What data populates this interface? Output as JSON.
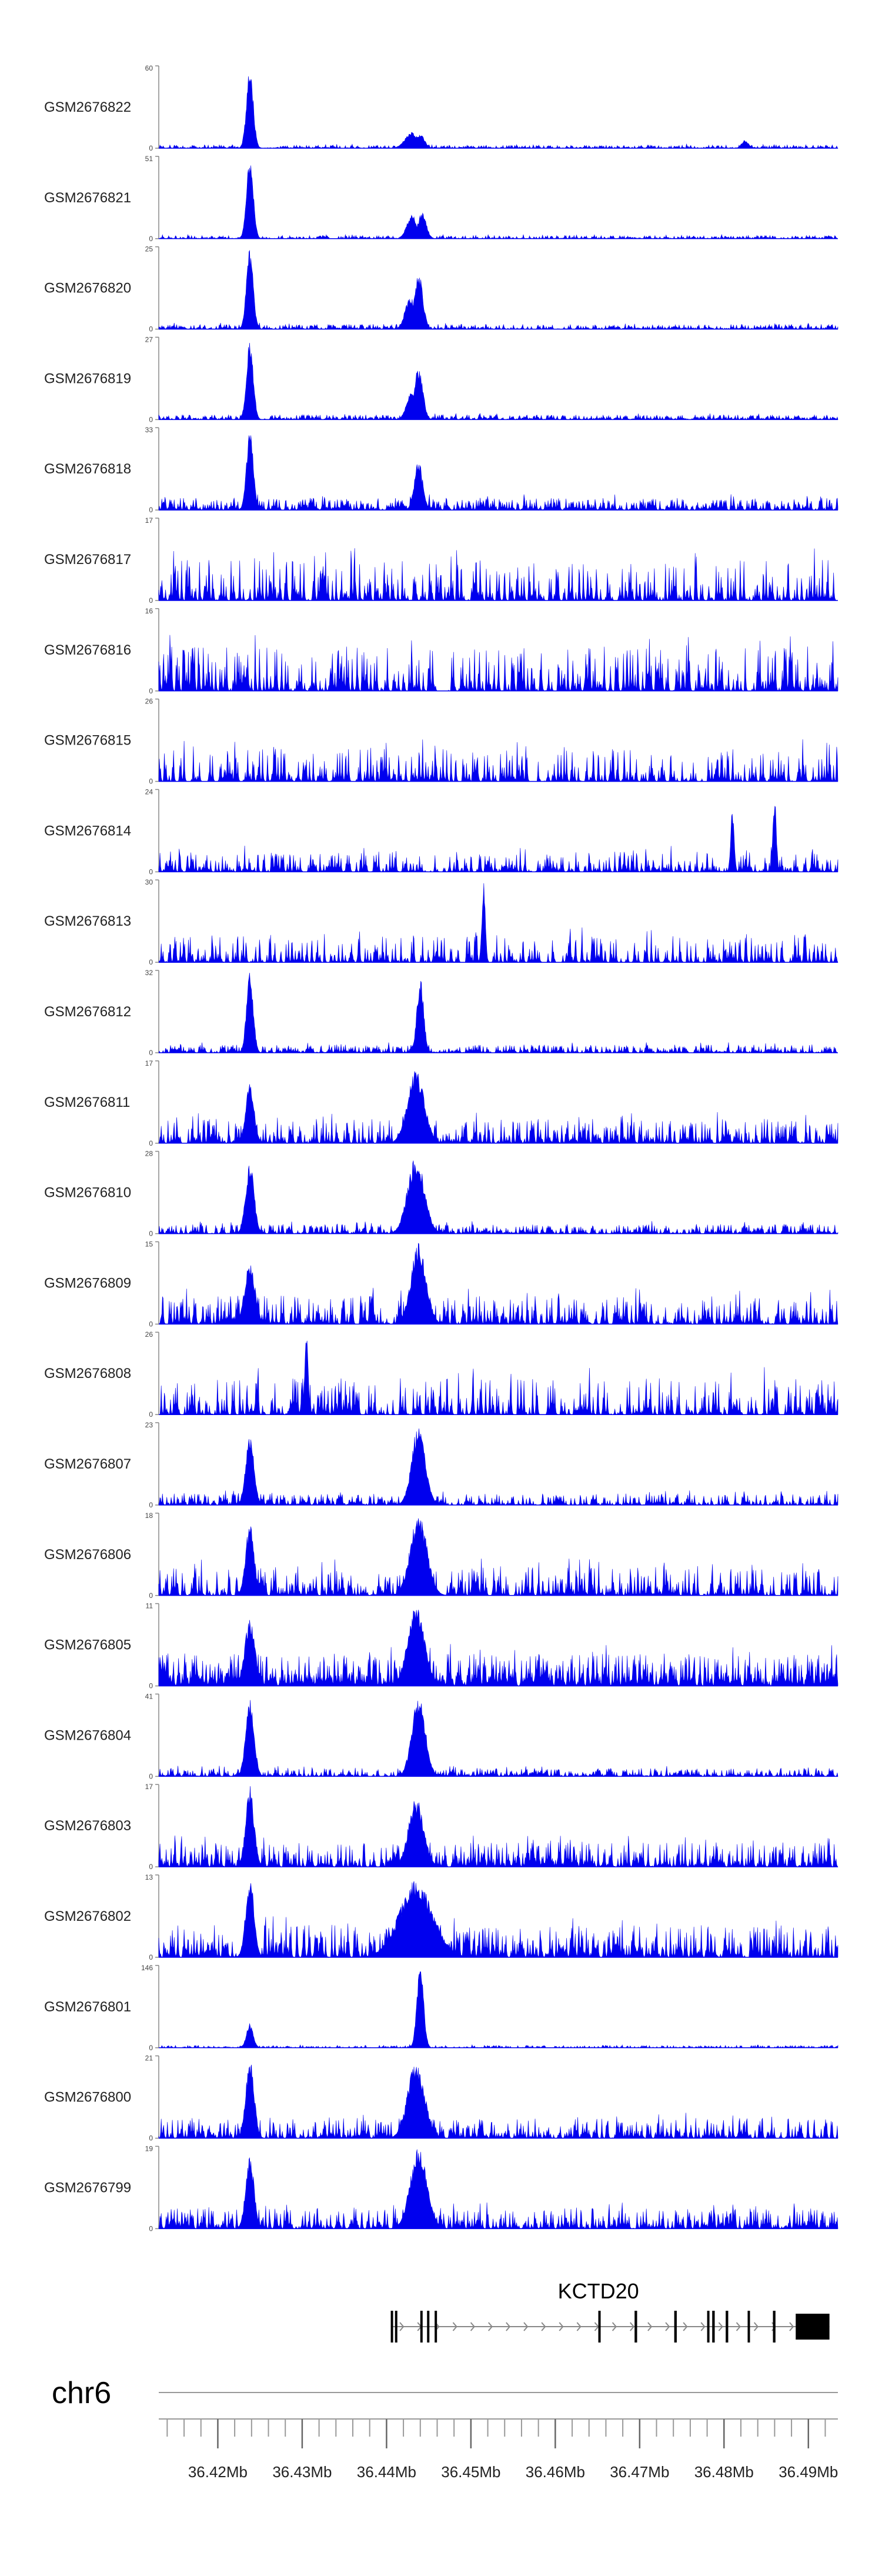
{
  "chart_data": {
    "type": "area",
    "title": "",
    "chromosome": "chr6",
    "x_unit": "Mb",
    "xlim": [
      36.413,
      36.4935
    ],
    "x_ticks": [
      36.42,
      36.43,
      36.44,
      36.45,
      36.46,
      36.47,
      36.48,
      36.49
    ],
    "x_tick_labels": [
      "36.42Mb",
      "36.43Mb",
      "36.44Mb",
      "36.45Mb",
      "36.46Mb",
      "36.47Mb",
      "36.48Mb",
      "36.49Mb"
    ],
    "minor_tick_step": 0.002,
    "tracks": [
      {
        "name": "GSM2676822",
        "ymax": 60,
        "ymin": 0,
        "noise": 0.04,
        "sparse": 0.3,
        "peaks": [
          [
            36.4238,
            1.0,
            0.0004
          ],
          [
            36.443,
            0.2,
            0.0008
          ],
          [
            36.444,
            0.18,
            0.0005
          ],
          [
            36.4825,
            0.1,
            0.0004
          ]
        ]
      },
      {
        "name": "GSM2676821",
        "ymax": 51,
        "ymin": 0,
        "noise": 0.04,
        "sparse": 0.3,
        "peaks": [
          [
            36.4238,
            1.0,
            0.0004
          ],
          [
            36.443,
            0.3,
            0.0006
          ],
          [
            36.4442,
            0.32,
            0.0005
          ]
        ]
      },
      {
        "name": "GSM2676820",
        "ymax": 25,
        "ymin": 0,
        "noise": 0.06,
        "sparse": 0.25,
        "peaks": [
          [
            36.4238,
            1.0,
            0.0004
          ],
          [
            36.4428,
            0.4,
            0.0006
          ],
          [
            36.4438,
            0.7,
            0.0005
          ]
        ]
      },
      {
        "name": "GSM2676819",
        "ymax": 27,
        "ymin": 0,
        "noise": 0.06,
        "sparse": 0.25,
        "peaks": [
          [
            36.4238,
            1.0,
            0.0004
          ],
          [
            36.443,
            0.35,
            0.0006
          ],
          [
            36.4438,
            0.65,
            0.0005
          ]
        ]
      },
      {
        "name": "GSM2676818",
        "ymax": 33,
        "ymin": 0,
        "noise": 0.15,
        "sparse": 0.3,
        "peaks": [
          [
            36.4238,
            1.0,
            0.0004
          ],
          [
            36.4438,
            0.6,
            0.0005
          ]
        ]
      },
      {
        "name": "GSM2676817",
        "ymax": 17,
        "ymin": 0,
        "noise": 0.5,
        "sparse": 0.55,
        "peaks": []
      },
      {
        "name": "GSM2676816",
        "ymax": 16,
        "ymin": 0,
        "noise": 0.55,
        "sparse": 0.55,
        "peaks": []
      },
      {
        "name": "GSM2676815",
        "ymax": 26,
        "ymin": 0,
        "noise": 0.4,
        "sparse": 0.55,
        "peaks": []
      },
      {
        "name": "GSM2676814",
        "ymax": 24,
        "ymin": 0,
        "noise": 0.25,
        "sparse": 0.5,
        "peaks": [
          [
            36.481,
            0.8,
            0.0002
          ],
          [
            36.486,
            0.95,
            0.0002
          ]
        ]
      },
      {
        "name": "GSM2676813",
        "ymax": 30,
        "ymin": 0,
        "noise": 0.35,
        "sparse": 0.55,
        "peaks": [
          [
            36.4515,
            1.0,
            0.0002
          ]
        ]
      },
      {
        "name": "GSM2676812",
        "ymax": 32,
        "ymin": 0,
        "noise": 0.1,
        "sparse": 0.35,
        "peaks": [
          [
            36.4238,
            1.0,
            0.0004
          ],
          [
            36.444,
            0.95,
            0.0004
          ]
        ]
      },
      {
        "name": "GSM2676811",
        "ymax": 17,
        "ymin": 0,
        "noise": 0.3,
        "sparse": 0.4,
        "peaks": [
          [
            36.4238,
            0.75,
            0.0005
          ],
          [
            36.4435,
            0.9,
            0.001
          ]
        ]
      },
      {
        "name": "GSM2676810",
        "ymax": 28,
        "ymin": 0,
        "noise": 0.12,
        "sparse": 0.35,
        "peaks": [
          [
            36.4238,
            0.9,
            0.0005
          ],
          [
            36.4435,
            0.95,
            0.001
          ]
        ]
      },
      {
        "name": "GSM2676809",
        "ymax": 15,
        "ymin": 0,
        "noise": 0.35,
        "sparse": 0.4,
        "peaks": [
          [
            36.4238,
            0.8,
            0.0006
          ],
          [
            36.4438,
            1.0,
            0.0009
          ]
        ]
      },
      {
        "name": "GSM2676808",
        "ymax": 26,
        "ymin": 0,
        "noise": 0.45,
        "sparse": 0.55,
        "peaks": [
          [
            36.4305,
            1.0,
            0.0002
          ]
        ]
      },
      {
        "name": "GSM2676807",
        "ymax": 23,
        "ymin": 0,
        "noise": 0.14,
        "sparse": 0.35,
        "peaks": [
          [
            36.4238,
            0.85,
            0.0005
          ],
          [
            36.4438,
            1.0,
            0.0008
          ]
        ]
      },
      {
        "name": "GSM2676806",
        "ymax": 18,
        "ymin": 0,
        "noise": 0.35,
        "sparse": 0.45,
        "peaks": [
          [
            36.4238,
            0.9,
            0.0005
          ],
          [
            36.4438,
            1.0,
            0.001
          ]
        ]
      },
      {
        "name": "GSM2676805",
        "ymax": 11,
        "ymin": 0,
        "noise": 0.4,
        "sparse": 0.15,
        "peaks": [
          [
            36.4238,
            0.85,
            0.0006
          ],
          [
            36.4435,
            1.0,
            0.001
          ]
        ]
      },
      {
        "name": "GSM2676804",
        "ymax": 41,
        "ymin": 0,
        "noise": 0.1,
        "sparse": 0.35,
        "peaks": [
          [
            36.4238,
            0.95,
            0.0005
          ],
          [
            36.4438,
            1.0,
            0.0008
          ]
        ]
      },
      {
        "name": "GSM2676803",
        "ymax": 17,
        "ymin": 0,
        "noise": 0.3,
        "sparse": 0.35,
        "peaks": [
          [
            36.4238,
            1.0,
            0.0005
          ],
          [
            36.4435,
            0.85,
            0.0009
          ]
        ]
      },
      {
        "name": "GSM2676802",
        "ymax": 13,
        "ymin": 0,
        "noise": 0.4,
        "sparse": 0.4,
        "peaks": [
          [
            36.4238,
            1.0,
            0.0005
          ],
          [
            36.4435,
            0.95,
            0.002
          ]
        ]
      },
      {
        "name": "GSM2676801",
        "ymax": 146,
        "ymin": 0,
        "noise": 0.03,
        "sparse": 0.35,
        "peaks": [
          [
            36.4238,
            0.3,
            0.0004
          ],
          [
            36.444,
            1.0,
            0.0004
          ]
        ]
      },
      {
        "name": "GSM2676800",
        "ymax": 21,
        "ymin": 0,
        "noise": 0.25,
        "sparse": 0.4,
        "peaks": [
          [
            36.4238,
            1.0,
            0.0005
          ],
          [
            36.4435,
            0.95,
            0.001
          ]
        ]
      },
      {
        "name": "GSM2676799",
        "ymax": 19,
        "ymin": 0,
        "noise": 0.25,
        "sparse": 0.4,
        "peaks": [
          [
            36.4238,
            0.9,
            0.0005
          ],
          [
            36.4438,
            1.0,
            0.001
          ]
        ]
      }
    ],
    "gene": {
      "name": "KCTD20",
      "strand": "+",
      "start": 36.4405,
      "end": 36.4925,
      "exons": [
        [
          36.4405,
          36.4407
        ],
        [
          36.441,
          36.4412
        ],
        [
          36.444,
          36.4442
        ],
        [
          36.4448,
          36.445
        ],
        [
          36.4457,
          36.4459
        ],
        [
          36.4651,
          36.4653
        ],
        [
          36.4694,
          36.4697
        ],
        [
          36.4741,
          36.4744
        ],
        [
          36.478,
          36.4782
        ],
        [
          36.4786,
          36.4789
        ],
        [
          36.4802,
          36.4805
        ],
        [
          36.4828,
          36.483
        ],
        [
          36.4858,
          36.4861
        ],
        [
          36.4885,
          36.4925
        ]
      ]
    }
  }
}
